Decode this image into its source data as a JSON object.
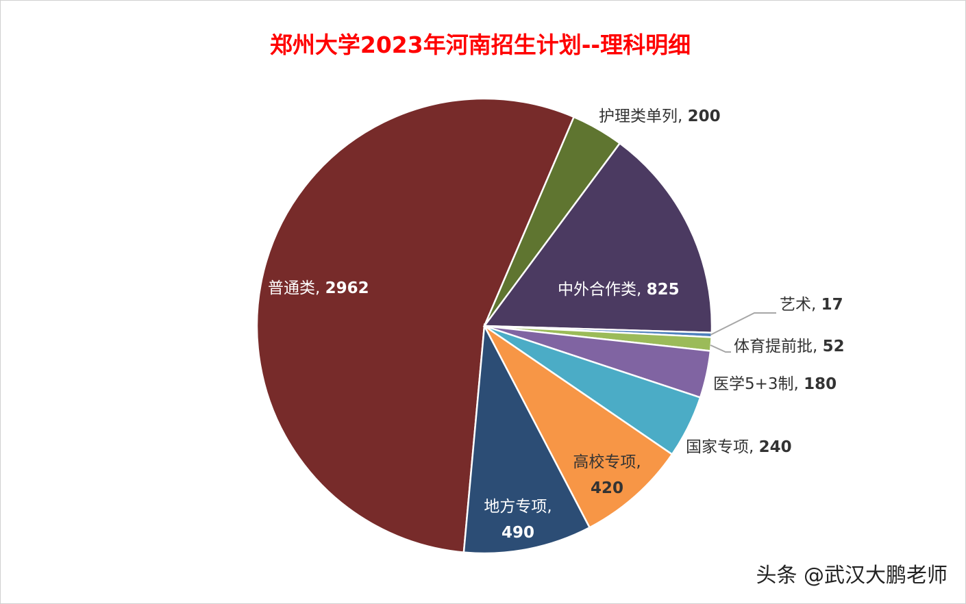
{
  "chart_data": {
    "type": "pie",
    "title": "郑州大学2023年河南招生计划--理科明细",
    "categories": [
      "普通类",
      "护理类单列",
      "中外合作类",
      "艺术",
      "体育提前批",
      "医学5+3制",
      "国家专项",
      "高校专项",
      "地方专项"
    ],
    "values": [
      2962,
      200,
      825,
      17,
      52,
      180,
      240,
      420,
      490
    ],
    "colors": [
      "#772b2a",
      "#5f7530",
      "#4b3a61",
      "#4f81bd",
      "#9bbb59",
      "#8064a2",
      "#4bacc6",
      "#f79646",
      "#2c4d75"
    ],
    "legend": "none",
    "data_labels": "category, value"
  },
  "watermark": "头条 @武汉大鹏老师"
}
